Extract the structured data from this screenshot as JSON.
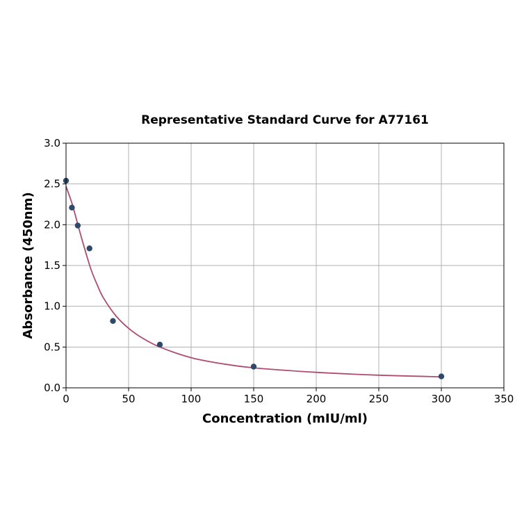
{
  "chart_data": {
    "type": "scatter",
    "title": "Representative Standard Curve for A77161",
    "xlabel": "Concentration (mIU/ml)",
    "ylabel": "Absorbance (450nm)",
    "xlim": [
      0,
      350
    ],
    "ylim": [
      0,
      3.0
    ],
    "xticks": [
      0,
      50,
      100,
      150,
      200,
      250,
      300,
      350
    ],
    "yticks": [
      0.0,
      0.5,
      1.0,
      1.5,
      2.0,
      2.5,
      3.0
    ],
    "xtick_labels": [
      "0",
      "50",
      "100",
      "150",
      "200",
      "250",
      "300",
      "350"
    ],
    "ytick_labels": [
      "0.0",
      "0.5",
      "1.0",
      "1.5",
      "2.0",
      "2.5",
      "3.0"
    ],
    "grid": true,
    "series": [
      {
        "kind": "points",
        "color": "#2e4a6b",
        "x": [
          0,
          4.69,
          9.38,
          18.75,
          37.5,
          75,
          150,
          300
        ],
        "y": [
          2.54,
          2.21,
          1.99,
          1.71,
          0.82,
          0.53,
          0.26,
          0.14
        ]
      },
      {
        "kind": "fit-line",
        "color": "#b04a6e",
        "x": [
          0,
          5,
          10,
          15,
          20,
          25,
          30,
          40,
          50,
          60,
          75,
          100,
          125,
          150,
          200,
          250,
          300
        ],
        "y": [
          2.47,
          2.25,
          1.97,
          1.7,
          1.45,
          1.26,
          1.1,
          0.88,
          0.73,
          0.62,
          0.5,
          0.37,
          0.295,
          0.245,
          0.19,
          0.155,
          0.135
        ]
      }
    ]
  }
}
